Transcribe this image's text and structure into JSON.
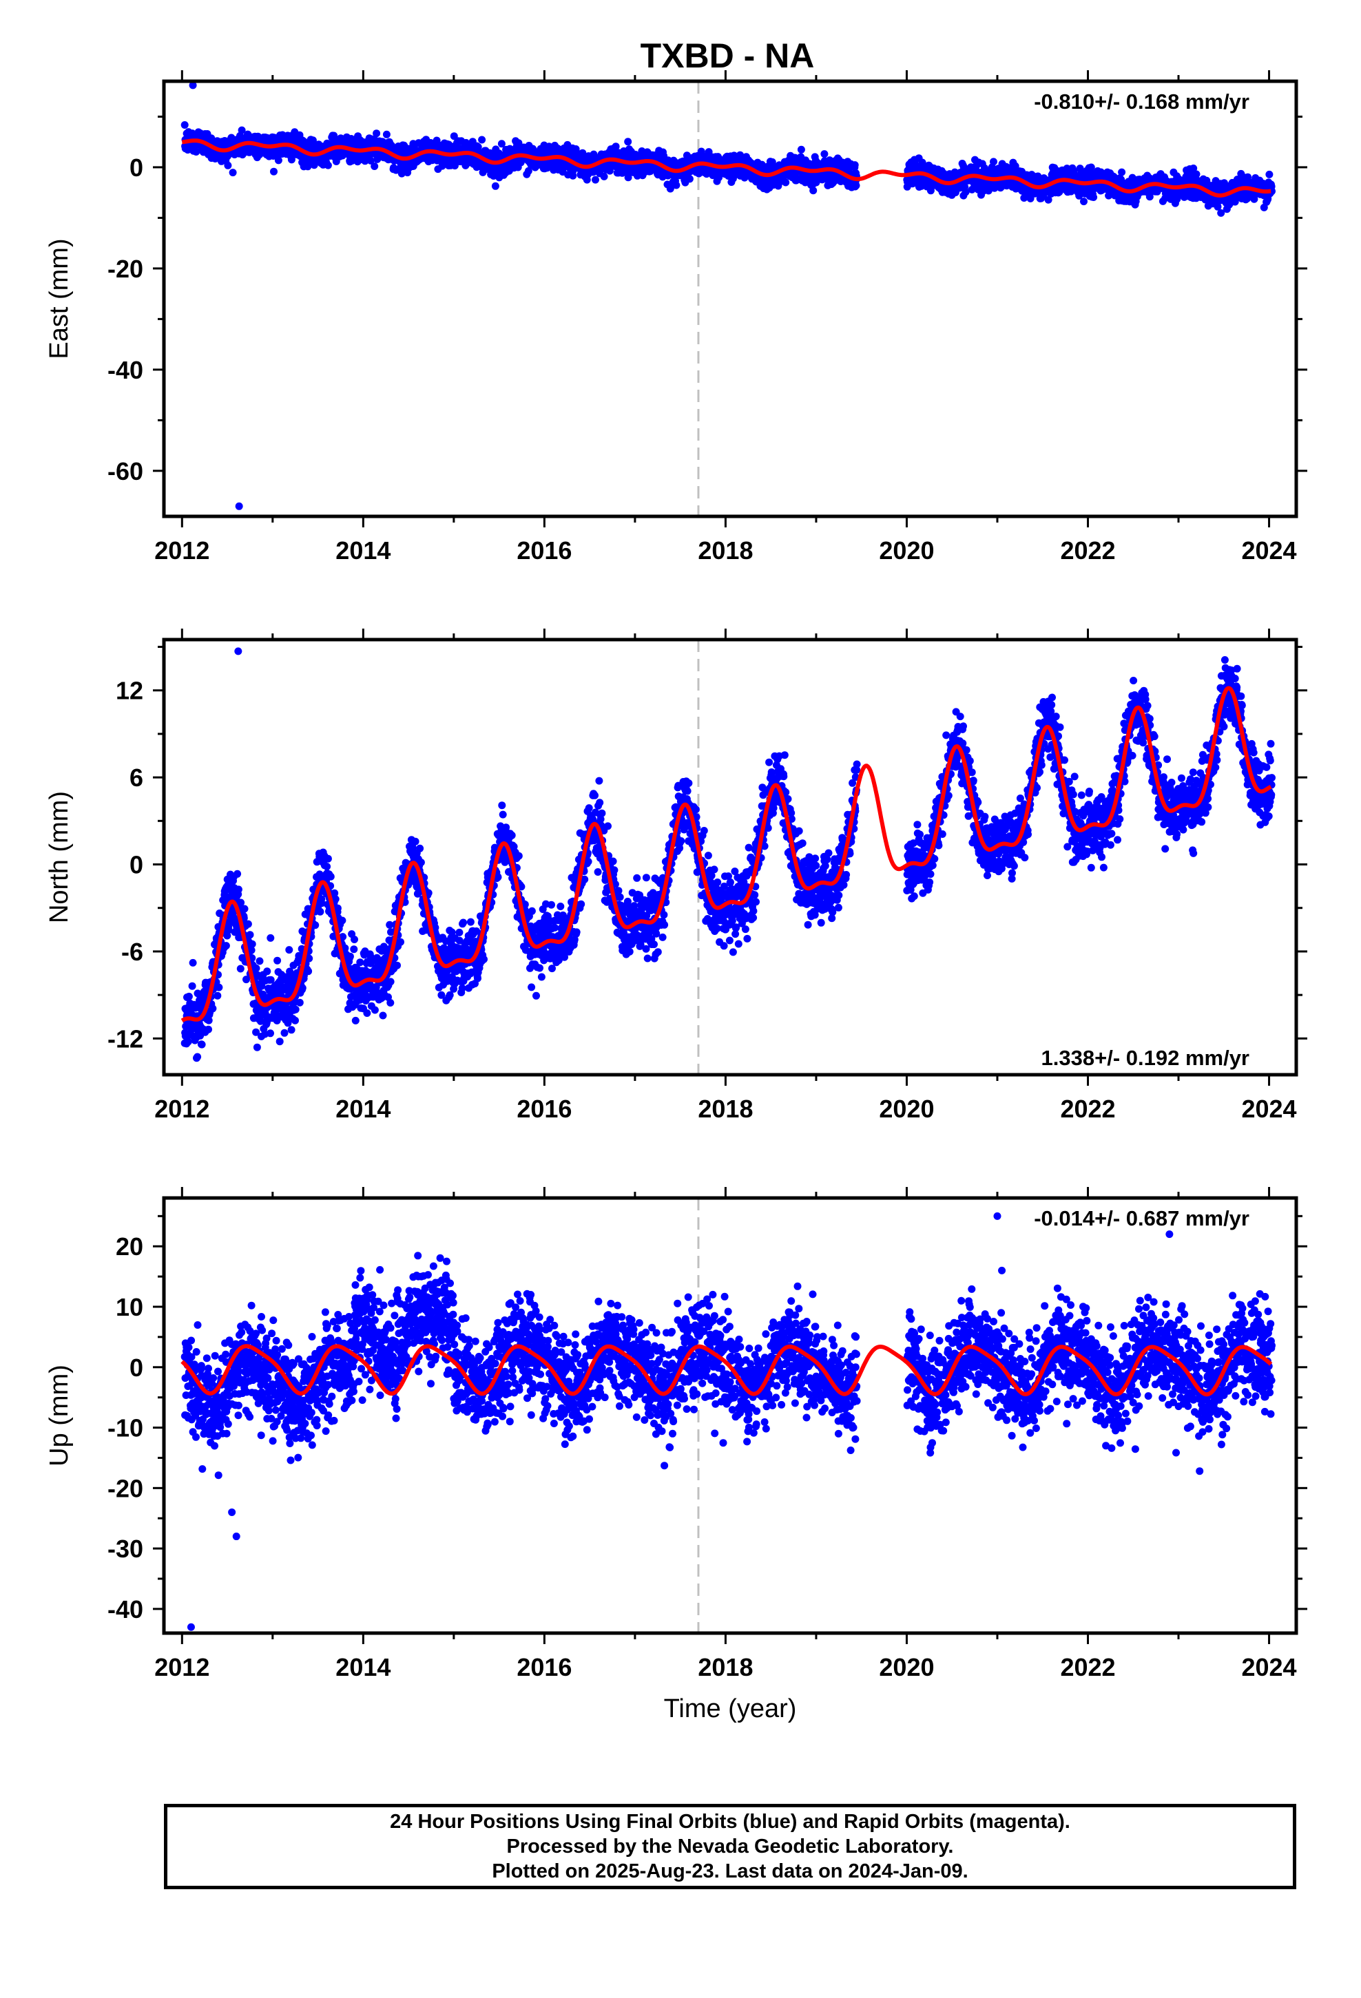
{
  "title": "TXBD - NA",
  "colors": {
    "data_points": "#0000ff",
    "model_fit": "#ff0000",
    "event_line": "#c0c0c0",
    "frame": "#000000"
  },
  "footer": {
    "line1": "24 Hour Positions Using Final Orbits (blue) and Rapid Orbits (magenta).",
    "line2": "Processed by the Nevada Geodetic Laboratory.",
    "line3": "Plotted on 2025-Aug-23. Last data on 2024-Jan-09."
  },
  "chart_data": [
    {
      "type": "scatter",
      "component": "east",
      "ylabel": "East (mm)",
      "xlabel": "",
      "rate_label": "-0.810+/- 0.168 mm/yr",
      "rate_position": "top-right",
      "xlim": [
        2011.8,
        2024.3
      ],
      "ylim": [
        -69,
        17
      ],
      "xticks": [
        2012,
        2014,
        2016,
        2018,
        2020,
        2022,
        2024
      ],
      "yticks": [
        -60,
        -40,
        -20,
        0
      ],
      "event_line_x": 2017.7,
      "gap": [
        2019.45,
        2020.0
      ],
      "data_end": 2024.03,
      "fit": {
        "trend_mm_per_yr": -0.81,
        "intercept_mm_at_2012": 4.8,
        "annual_amplitude_mm": 0.6,
        "annual_peak_year_fraction": 0.95,
        "semiannual_amplitude_mm": 0.5,
        "semiannual_phase_year_fraction": 0.2,
        "scatter_sigma_mm": 1.2
      },
      "outliers": [
        {
          "x": 2012.12,
          "y": 16.2
        },
        {
          "x": 2012.63,
          "y": -67
        }
      ]
    },
    {
      "type": "scatter",
      "component": "north",
      "ylabel": "North (mm)",
      "xlabel": "",
      "rate_label": "1.338+/- 0.192 mm/yr",
      "rate_position": "bottom-right",
      "xlim": [
        2011.8,
        2024.3
      ],
      "ylim": [
        -14.5,
        15.5
      ],
      "xticks": [
        2012,
        2014,
        2016,
        2018,
        2020,
        2022,
        2024
      ],
      "yticks": [
        -12,
        -6,
        0,
        6,
        12
      ],
      "event_line_x": 2017.7,
      "gap": [
        2019.45,
        2020.0
      ],
      "data_end": 2024.03,
      "fit": {
        "trend_mm_per_yr": 1.338,
        "intercept_mm_at_2012": -8.3,
        "annual_amplitude_mm": 3.7,
        "annual_peak_year_fraction": 0.55,
        "semiannual_amplitude_mm": 1.3,
        "semiannual_phase_year_fraction": 0.05,
        "scatter_sigma_mm": 1.1
      },
      "outliers": [
        {
          "x": 2012.62,
          "y": 14.7
        }
      ]
    },
    {
      "type": "scatter",
      "component": "up",
      "ylabel": "Up (mm)",
      "xlabel": "Time (year)",
      "rate_label": "-0.014+/- 0.687 mm/yr",
      "rate_position": "top-right",
      "xlim": [
        2011.8,
        2024.3
      ],
      "ylim": [
        -44,
        28
      ],
      "xticks": [
        2012,
        2014,
        2016,
        2018,
        2020,
        2022,
        2024
      ],
      "yticks": [
        -40,
        -30,
        -20,
        -10,
        0,
        10,
        20
      ],
      "event_line_x": 2017.7,
      "gap": [
        2019.45,
        2020.0
      ],
      "data_end": 2024.03,
      "fit": {
        "trend_mm_per_yr": -0.014,
        "intercept_mm_at_2012": 0.0,
        "annual_amplitude_mm": 3.7,
        "annual_peak_year_fraction": 0.78,
        "semiannual_amplitude_mm": 0.8,
        "semiannual_phase_year_fraction": 0.1,
        "scatter_sigma_mm": 4.0
      },
      "offsets": [
        {
          "from": 2013.9,
          "to": 2015.0,
          "shift_mm": 7
        },
        {
          "from": 2012.0,
          "to": 2013.9,
          "shift_mm": -3
        }
      ],
      "outliers": [
        {
          "x": 2012.1,
          "y": -43
        },
        {
          "x": 2012.6,
          "y": -28
        },
        {
          "x": 2012.55,
          "y": -24
        },
        {
          "x": 2021.0,
          "y": 25
        },
        {
          "x": 2022.9,
          "y": 22
        },
        {
          "x": 2021.05,
          "y": 16
        }
      ]
    }
  ]
}
